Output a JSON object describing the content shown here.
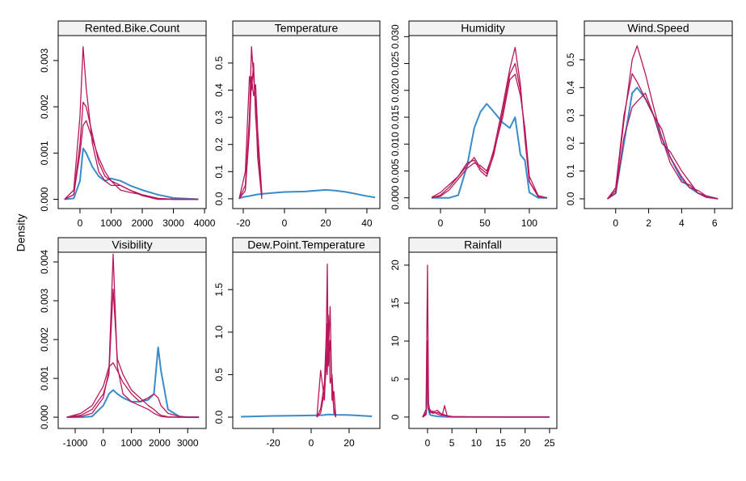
{
  "y_label": "Density",
  "chart_data": [
    {
      "type": "line",
      "title": "Rented.Bike.Count",
      "x": [
        -500,
        -200,
        0,
        100,
        200,
        400,
        600,
        800,
        1000,
        1300,
        1600,
        2000,
        2500,
        3000,
        3800
      ],
      "series": [
        {
          "color": "#3a8bc9",
          "values": [
            0,
            2e-05,
            0.0004,
            0.0011,
            0.001,
            0.0007,
            0.0005,
            0.0004,
            0.00045,
            0.0004,
            0.0003,
            0.0002,
            0.0001,
            3e-05,
            0
          ]
        },
        {
          "color": "#b8175a",
          "values": [
            0,
            0.0001,
            0.0012,
            0.0021,
            0.002,
            0.0014,
            0.0008,
            0.0005,
            0.0004,
            0.0003,
            0.0002,
            0.0001,
            2e-05,
            0,
            0
          ]
        },
        {
          "color": "#b8175a",
          "values": [
            0,
            0.0002,
            0.0018,
            0.0033,
            0.0024,
            0.0012,
            0.0006,
            0.0004,
            0.0003,
            0.0003,
            0.0002,
            8e-05,
            0,
            0,
            0
          ]
        },
        {
          "color": "#b8175a",
          "values": [
            0,
            0.0001,
            0.001,
            0.0016,
            0.0017,
            0.0013,
            0.0009,
            0.0006,
            0.0004,
            0.0002,
            0.00015,
            0.0001,
            2e-05,
            0,
            0
          ]
        }
      ],
      "xlim": [
        -700,
        4050
      ],
      "ylim": [
        -0.0002,
        0.00354
      ],
      "xticks": [
        0,
        1000,
        2000,
        3000,
        4000
      ],
      "yticks": [
        {
          "value": 0,
          "label": "0.000"
        },
        0.001,
        0.002,
        0.003
      ]
    },
    {
      "type": "line",
      "title": "Temperature",
      "x": [
        -22,
        -19,
        -17,
        -16,
        -15,
        -14,
        -13,
        -11,
        -5,
        0,
        10,
        20,
        25,
        30,
        40,
        44
      ],
      "series": [
        {
          "color": "#3a8bc9",
          "values": [
            0.002,
            0.008,
            0.01,
            0.012,
            0.013,
            0.015,
            0.016,
            0.018,
            0.022,
            0.025,
            0.027,
            0.033,
            0.03,
            0.025,
            0.01,
            0.005
          ]
        },
        {
          "color": "#b8175a",
          "values": [
            0,
            0.05,
            0.3,
            0.56,
            0.45,
            0.35,
            0.15,
            0,
            null,
            null,
            null,
            null,
            null,
            null,
            null,
            null
          ]
        },
        {
          "color": "#b8175a",
          "values": [
            0,
            0.1,
            0.45,
            0.4,
            0.5,
            0.3,
            0.2,
            0.01,
            null,
            null,
            null,
            null,
            null,
            null,
            null,
            null
          ]
        },
        {
          "color": "#b8175a",
          "values": [
            0,
            0.03,
            0.25,
            0.45,
            0.38,
            0.42,
            0.25,
            0.02,
            null,
            null,
            null,
            null,
            null,
            null,
            null,
            null
          ]
        }
      ],
      "xlim": [
        -25.1,
        46.3
      ],
      "ylim": [
        -0.036,
        0.601
      ],
      "xticks": [
        -20,
        0,
        20,
        40
      ],
      "yticks": [
        {
          "value": 0,
          "label": "0.0"
        },
        0.1,
        0.2,
        0.3,
        0.4,
        0.5
      ]
    },
    {
      "type": "line",
      "title": "Humidity",
      "x": [
        -10,
        0,
        10,
        20,
        30,
        38,
        45,
        52,
        60,
        70,
        78,
        84,
        90,
        95,
        100,
        110,
        120
      ],
      "series": [
        {
          "color": "#3a8bc9",
          "values": [
            0,
            0,
            0,
            0.0005,
            0.006,
            0.013,
            0.016,
            0.0175,
            0.016,
            0.014,
            0.013,
            0.015,
            0.008,
            0.007,
            0.001,
            0,
            0
          ]
        },
        {
          "color": "#b8175a",
          "values": [
            0,
            0.0005,
            0.002,
            0.004,
            0.0065,
            0.007,
            0.005,
            0.004,
            0.008,
            0.016,
            0.023,
            0.025,
            0.02,
            0.012,
            0.003,
            0.0002,
            0
          ]
        },
        {
          "color": "#b8175a",
          "values": [
            0.0001,
            0.001,
            0.0025,
            0.004,
            0.006,
            0.0075,
            0.0055,
            0.0045,
            0.009,
            0.017,
            0.024,
            0.028,
            0.021,
            0.011,
            0.003,
            0.0003,
            0
          ]
        },
        {
          "color": "#b8175a",
          "values": [
            0,
            0.0003,
            0.0015,
            0.0035,
            0.0055,
            0.0065,
            0.006,
            0.005,
            0.0085,
            0.015,
            0.022,
            0.023,
            0.019,
            0.013,
            0.004,
            0.0004,
            0
          ]
        }
      ],
      "xlim": [
        -35.5,
        131
      ],
      "ylim": [
        -0.002,
        0.0302
      ],
      "xticks": [
        0,
        50,
        100
      ],
      "yticks": [
        {
          "value": 0,
          "label": "0.000"
        },
        0.005,
        {
          "value": 0.01,
          "label": "0.010"
        },
        0.015,
        {
          "value": 0.02,
          "label": "0.020"
        },
        0.025,
        {
          "value": 0.03,
          "label": "0.030"
        }
      ]
    },
    {
      "type": "line",
      "title": "Wind.Speed",
      "x": [
        -0.5,
        0,
        0.5,
        1,
        1.3,
        1.8,
        2.3,
        2.8,
        3.3,
        4,
        4.5,
        5,
        5.5,
        6.2
      ],
      "series": [
        {
          "color": "#3a8bc9",
          "values": [
            0,
            0.02,
            0.2,
            0.38,
            0.4,
            0.36,
            0.3,
            0.22,
            0.15,
            0.07,
            0.04,
            0.02,
            0.01,
            0
          ]
        },
        {
          "color": "#b8175a",
          "values": [
            0,
            0.03,
            0.28,
            0.5,
            0.55,
            0.45,
            0.33,
            0.22,
            0.13,
            0.06,
            0.05,
            0.02,
            0.005,
            0
          ]
        },
        {
          "color": "#b8175a",
          "values": [
            0,
            0.04,
            0.3,
            0.45,
            0.42,
            0.36,
            0.3,
            0.25,
            0.15,
            0.08,
            0.04,
            0.03,
            0.01,
            0
          ]
        },
        {
          "color": "#b8175a",
          "values": [
            0,
            0.02,
            0.22,
            0.33,
            0.35,
            0.38,
            0.3,
            0.2,
            0.17,
            0.1,
            0.06,
            0.02,
            0.01,
            0
          ]
        }
      ],
      "xlim": [
        -1.9,
        7.07
      ],
      "ylim": [
        -0.035,
        0.587
      ],
      "xticks": [
        0,
        2,
        4,
        6
      ],
      "yticks": [
        {
          "value": 0,
          "label": "0.0"
        },
        0.1,
        0.2,
        0.3,
        0.4,
        0.5
      ]
    },
    {
      "type": "line",
      "title": "Visibility",
      "x": [
        -1300,
        -800,
        -400,
        0,
        200,
        350,
        500,
        700,
        1000,
        1300,
        1600,
        1800,
        1950,
        2050,
        2300,
        2700,
        3000,
        3400
      ],
      "series": [
        {
          "color": "#3a8bc9",
          "values": [
            0,
            0,
            2e-05,
            0.0003,
            0.0006,
            0.0007,
            0.0006,
            0.0005,
            0.0004,
            0.0004,
            0.00045,
            0.0006,
            0.0018,
            0.0012,
            0.0002,
            2e-05,
            0,
            0
          ]
        },
        {
          "color": "#b8175a",
          "values": [
            0,
            2e-05,
            0.0001,
            0.0005,
            0.0012,
            0.0042,
            0.0013,
            0.0006,
            0.0004,
            0.0003,
            0.0002,
            0.0001,
            5e-05,
            2e-05,
            0,
            0,
            0,
            0
          ]
        },
        {
          "color": "#b8175a",
          "values": [
            0,
            0.0001,
            0.0003,
            0.0008,
            0.0013,
            0.0014,
            0.0012,
            0.0009,
            0.0006,
            0.0004,
            0.0005,
            0.0006,
            0.0005,
            0.0003,
            0.0001,
            2e-05,
            0,
            0
          ]
        },
        {
          "color": "#b8175a",
          "values": [
            0,
            5e-05,
            0.0002,
            0.0006,
            0.0011,
            0.0033,
            0.0015,
            0.0011,
            0.0007,
            0.0005,
            0.0003,
            0.0002,
            0.0001,
            5e-05,
            1e-05,
            0,
            0,
            0
          ]
        }
      ],
      "xlim": [
        -1604,
        3655
      ],
      "ylim": [
        -0.00029,
        0.00425
      ],
      "xticks": [
        -1000,
        0,
        1000,
        2000,
        3000
      ],
      "yticks": [
        {
          "value": 0,
          "label": "0.000"
        },
        0.001,
        0.002,
        0.003,
        0.004
      ]
    },
    {
      "type": "line",
      "title": "Dew.Point.Temperature",
      "x": [
        -37,
        -20,
        0,
        3,
        5,
        7,
        8,
        8.5,
        9,
        10,
        11,
        12,
        13,
        20,
        32
      ],
      "series": [
        {
          "color": "#3a8bc9",
          "values": [
            0.005,
            0.015,
            0.02,
            0.022,
            0.023,
            0.025,
            0.03,
            0.03,
            0.032,
            0.03,
            0.03,
            0.03,
            0.028,
            0.025,
            0.01
          ]
        },
        {
          "color": "#b8175a",
          "values": [
            null,
            null,
            null,
            0,
            0.1,
            0.4,
            1.0,
            1.8,
            0.6,
            0.9,
            0.3,
            0.1,
            0,
            null,
            null
          ]
        },
        {
          "color": "#b8175a",
          "values": [
            null,
            null,
            null,
            0,
            0.55,
            0.2,
            0.8,
            0.5,
            1.2,
            0.4,
            0.5,
            0.05,
            0,
            null,
            null
          ]
        },
        {
          "color": "#b8175a",
          "values": [
            null,
            null,
            null,
            0,
            0.05,
            0.3,
            0.6,
            1.1,
            0.7,
            1.3,
            0.2,
            0.3,
            0,
            null,
            null
          ]
        }
      ],
      "xlim": [
        -41.3,
        36.2
      ],
      "ylim": [
        -0.133,
        1.94
      ],
      "xticks": [
        -20,
        0,
        20
      ],
      "yticks": [
        {
          "value": 0,
          "label": "0.0"
        },
        0.5,
        {
          "value": 1,
          "label": "1.0"
        },
        1.5
      ]
    },
    {
      "type": "line",
      "title": "Rainfall",
      "x": [
        -1,
        -0.3,
        0,
        0.2,
        0.5,
        1,
        2,
        3,
        3.5,
        4,
        5,
        10,
        15,
        20,
        25
      ],
      "series": [
        {
          "color": "#3a8bc9",
          "values": [
            0,
            0.5,
            3.3,
            1.0,
            0.3,
            0.2,
            0.1,
            0.05,
            0.05,
            0.03,
            0.02,
            0.01,
            0,
            0,
            0
          ]
        },
        {
          "color": "#b8175a",
          "values": [
            0,
            1,
            20,
            2,
            0.5,
            0.8,
            0.4,
            0.2,
            1.5,
            0.2,
            0.05,
            0.02,
            0.01,
            0,
            0
          ]
        },
        {
          "color": "#b8175a",
          "values": [
            0,
            0.5,
            10,
            1.5,
            0.8,
            0.6,
            0.9,
            0.3,
            0.2,
            0.1,
            0.05,
            0.02,
            0,
            0,
            0
          ]
        },
        {
          "color": "#b8175a",
          "values": [
            0,
            0.3,
            6,
            1,
            1,
            0.5,
            0.6,
            0.4,
            0.3,
            0.15,
            0.05,
            0.01,
            0,
            0,
            0
          ]
        }
      ],
      "xlim": [
        -3.8,
        26.5
      ],
      "ylim": [
        -1.5,
        21.7
      ],
      "xticks": [
        0,
        5,
        10,
        15,
        20,
        25
      ],
      "yticks": [
        0,
        5,
        10,
        15,
        20
      ]
    }
  ]
}
